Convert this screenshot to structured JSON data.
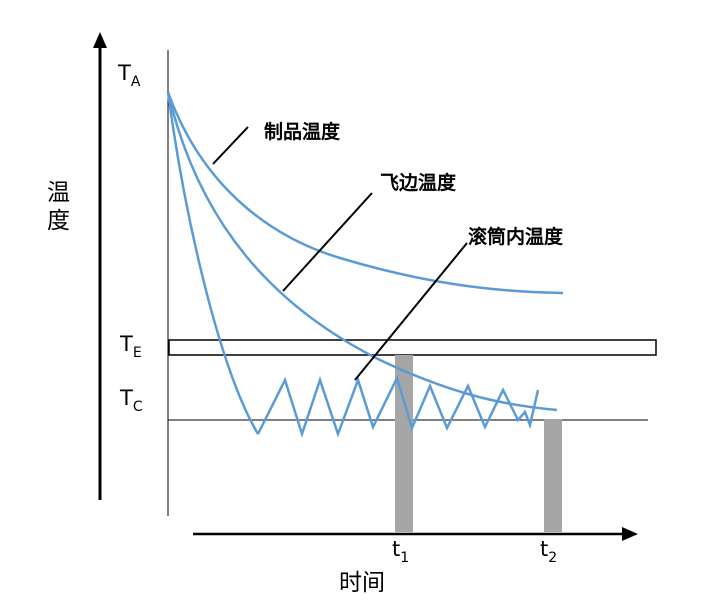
{
  "axes": {
    "y_title": "温度",
    "x_title": "时间"
  },
  "levels": {
    "TA": {
      "main": "T",
      "sub": "A"
    },
    "TE": {
      "main": "T",
      "sub": "E"
    },
    "TC": {
      "main": "T",
      "sub": "C"
    }
  },
  "times": {
    "t1": {
      "main": "t",
      "sub": "1"
    },
    "t2": {
      "main": "t",
      "sub": "2"
    }
  },
  "curves": {
    "product": "制品温度",
    "flash": "飞边温度",
    "drum": "滚筒内温度"
  },
  "colors": {
    "curve": "#5b9bd5",
    "marker": "#a6a6a6",
    "axis": "#000000"
  }
}
